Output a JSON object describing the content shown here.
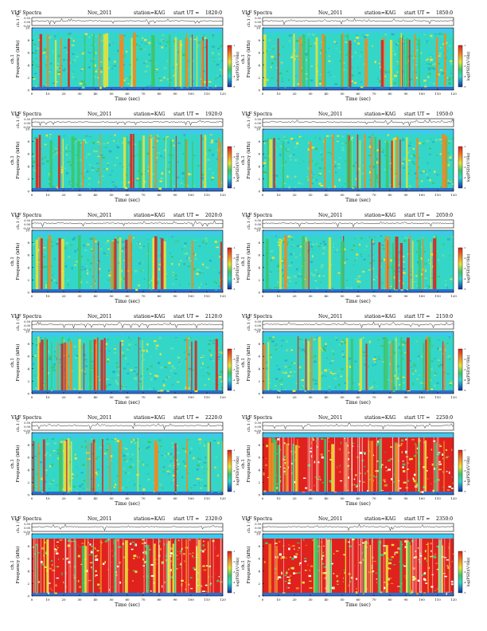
{
  "page": {
    "background": "#ffffff"
  },
  "common": {
    "title_left": "VLF Spectra",
    "date": "Nov,,2011",
    "station": "station=KAG",
    "start_prefix": "start UT =",
    "xlabel": "Time (sec)",
    "ylabel": "Frequency (kHz)",
    "ch_label": "ch.1",
    "ts_ylabel": "ch.1 (V)",
    "ts_ticks": [
      "0.50",
      "0.00",
      "-0.50"
    ],
    "cb_label": "log(PSD)(V²/Hz)",
    "x_ticks": [
      "0",
      "10",
      "20",
      "30",
      "40",
      "50",
      "60",
      "70",
      "80",
      "90",
      "100",
      "110",
      "120"
    ],
    "y_ticks": [
      "0",
      "2",
      "4",
      "6",
      "8",
      "10"
    ],
    "cb_ticks": [
      "-1",
      "-2",
      "-3",
      "-4",
      "-5"
    ],
    "colors": {
      "background_level": "#34d7c7",
      "low_band": "#2b6fd0",
      "green": "#3fc46a",
      "yellow": "#e6e23a",
      "orange": "#f08a24",
      "red": "#e0221e",
      "top_band": "#40c8ee"
    }
  },
  "chart_data": [
    {
      "type": "heatmap",
      "start_ut": "1820:0",
      "xlim": [
        0,
        120
      ],
      "ylim": [
        0,
        10
      ],
      "activity": "moderate"
    },
    {
      "type": "heatmap",
      "start_ut": "1850:0",
      "xlim": [
        0,
        120
      ],
      "ylim": [
        0,
        10
      ],
      "activity": "moderate"
    },
    {
      "type": "heatmap",
      "start_ut": "1920:0",
      "xlim": [
        0,
        120
      ],
      "ylim": [
        0,
        10
      ],
      "activity": "moderate"
    },
    {
      "type": "heatmap",
      "start_ut": "1950:0",
      "xlim": [
        0,
        120
      ],
      "ylim": [
        0,
        10
      ],
      "activity": "moderate"
    },
    {
      "type": "heatmap",
      "start_ut": "2020:0",
      "xlim": [
        0,
        120
      ],
      "ylim": [
        0,
        10
      ],
      "activity": "low"
    },
    {
      "type": "heatmap",
      "start_ut": "2050:0",
      "xlim": [
        0,
        120
      ],
      "ylim": [
        0,
        10
      ],
      "activity": "low"
    },
    {
      "type": "heatmap",
      "start_ut": "2120:0",
      "xlim": [
        0,
        120
      ],
      "ylim": [
        0,
        10
      ],
      "activity": "moderate"
    },
    {
      "type": "heatmap",
      "start_ut": "2150:0",
      "xlim": [
        0,
        120
      ],
      "ylim": [
        0,
        10
      ],
      "activity": "low"
    },
    {
      "type": "heatmap",
      "start_ut": "2220:0",
      "xlim": [
        0,
        120
      ],
      "ylim": [
        0,
        10
      ],
      "activity": "low"
    },
    {
      "type": "heatmap",
      "start_ut": "2250:0",
      "xlim": [
        0,
        120
      ],
      "ylim": [
        0,
        10
      ],
      "activity": "high"
    },
    {
      "type": "heatmap",
      "start_ut": "2320:0",
      "xlim": [
        0,
        120
      ],
      "ylim": [
        0,
        10
      ],
      "activity": "high"
    },
    {
      "type": "heatmap",
      "start_ut": "2350:0",
      "xlim": [
        0,
        120
      ],
      "ylim": [
        0,
        10
      ],
      "activity": "high"
    }
  ]
}
